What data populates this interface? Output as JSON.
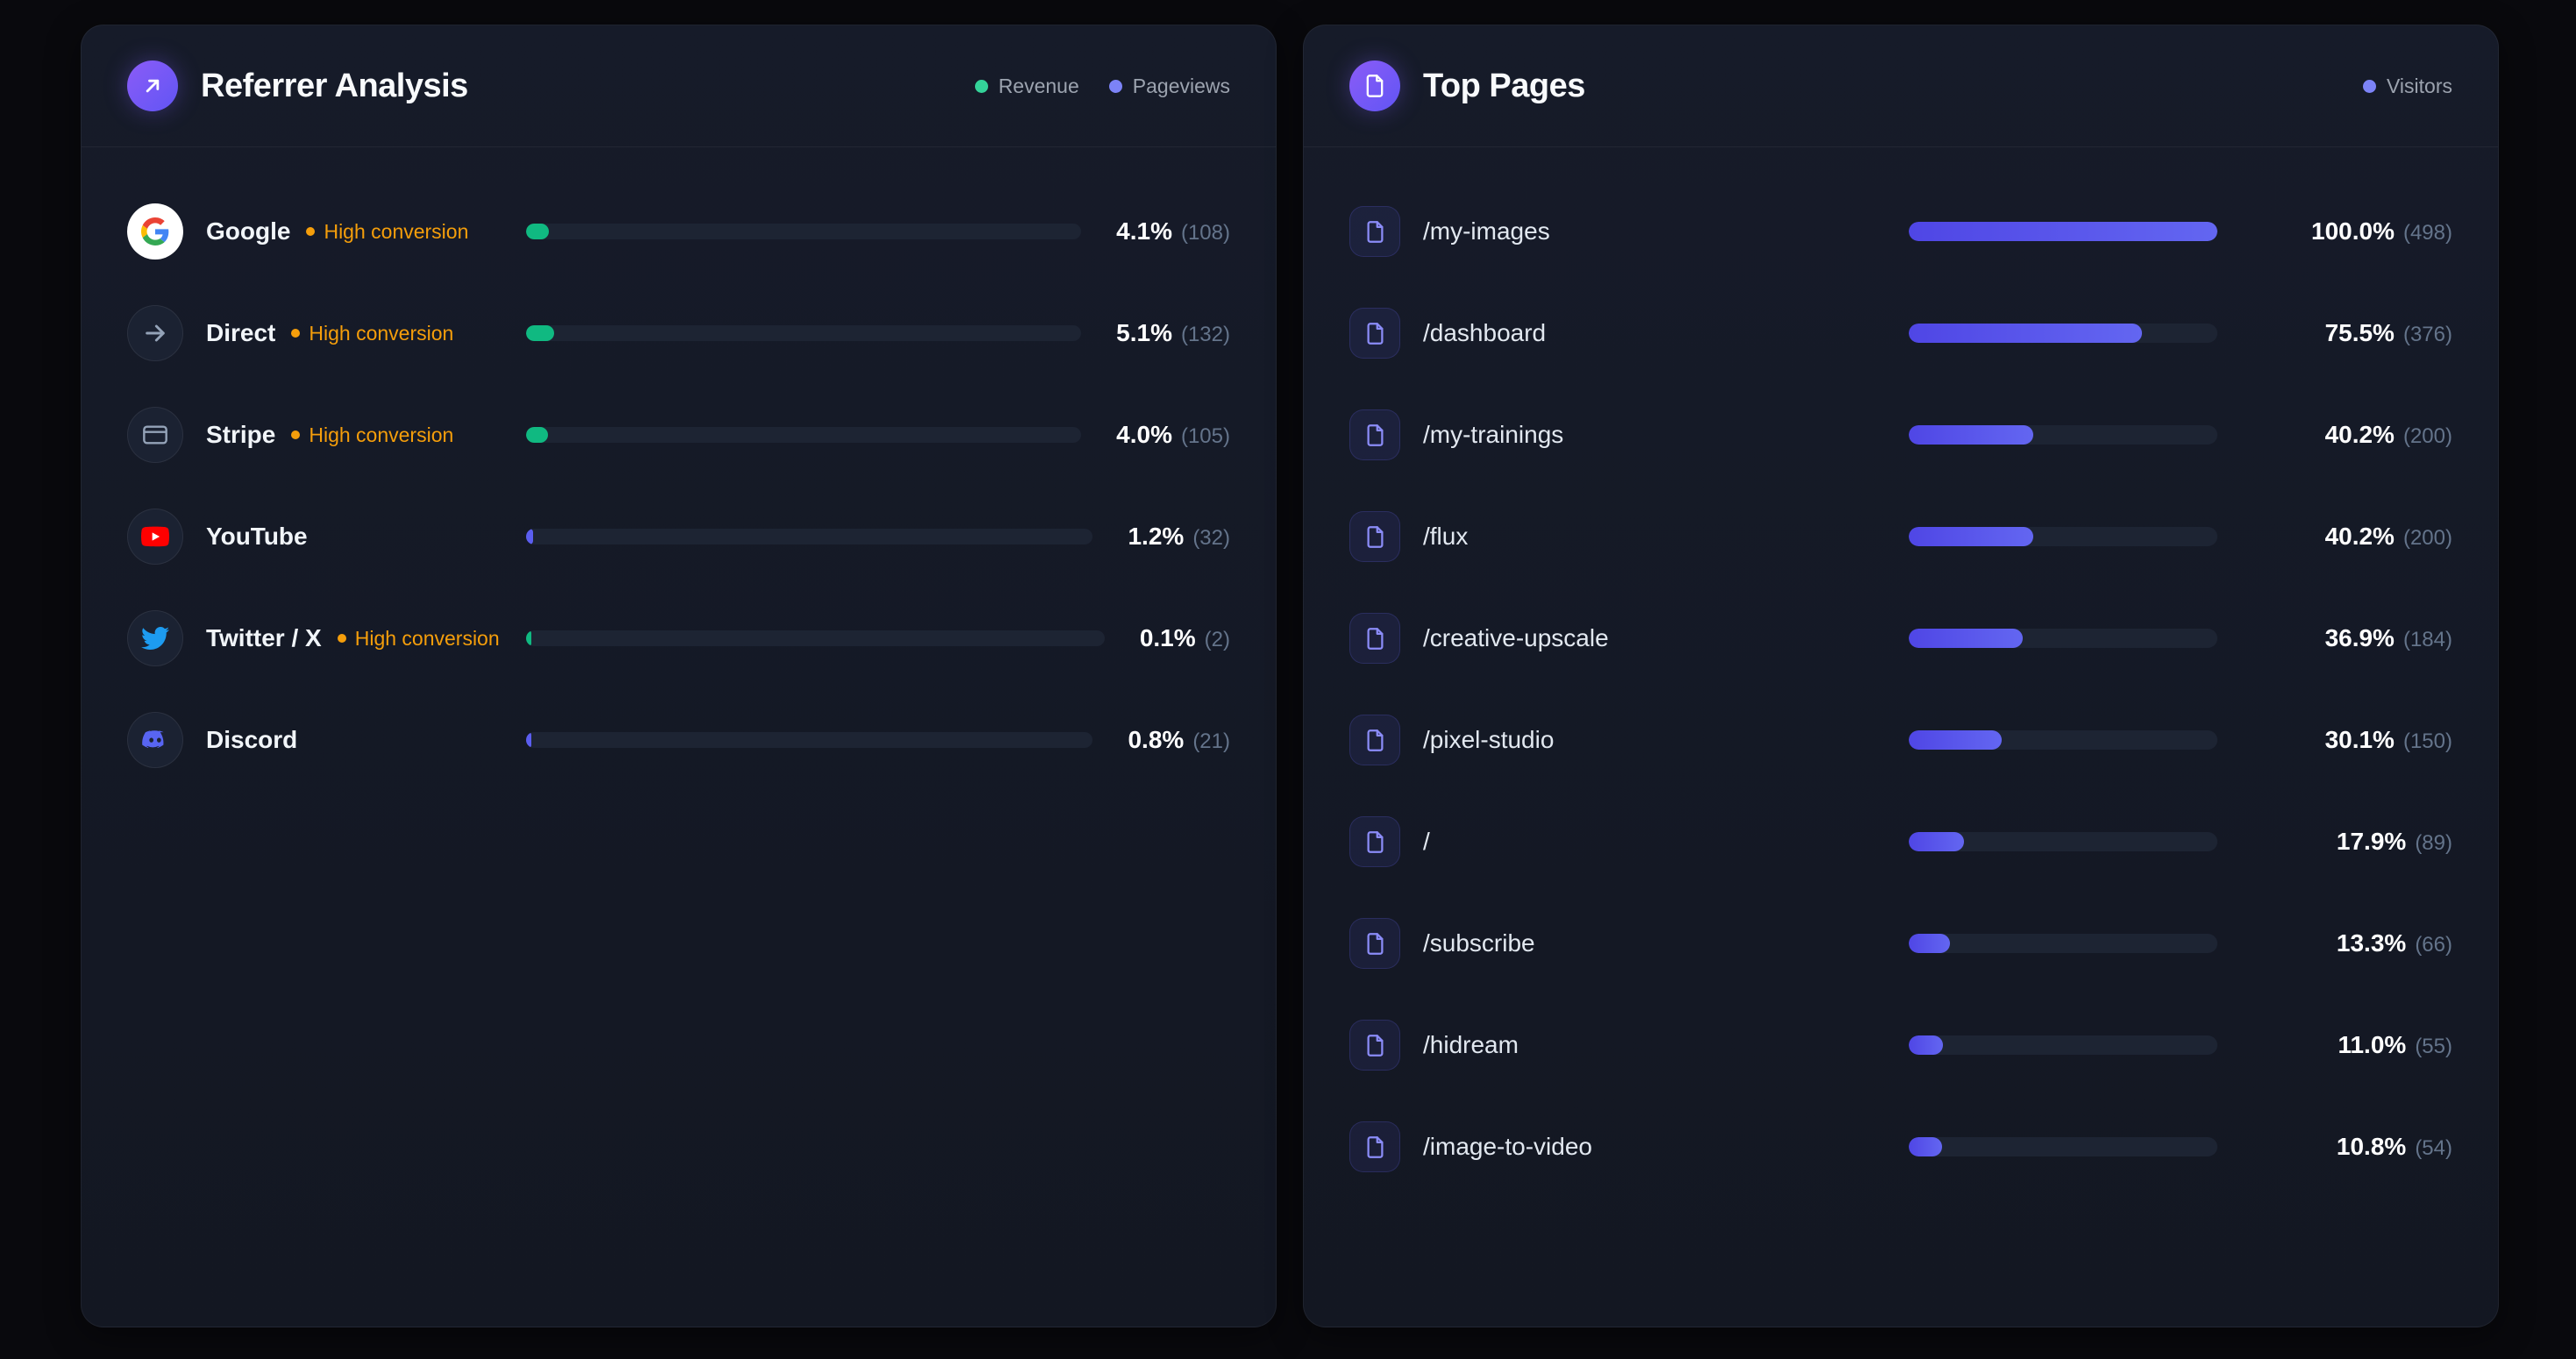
{
  "colors": {
    "revenue": "#10b981",
    "pageviews": "#5b5ef0",
    "visitors_bar_start": "#4f46e5",
    "visitors_bar_end": "#6366f1",
    "badge": "#f59e0b",
    "legend_revenue": "#34d399",
    "legend_pageviews": "#7c83f7",
    "legend_visitors": "#7c83f7"
  },
  "referrer_card": {
    "title": "Referrer Analysis",
    "icon": "arrow-up-right-icon",
    "badge_label": "High conversion",
    "legend": [
      {
        "key": "revenue",
        "label": "Revenue",
        "color": "#34d399"
      },
      {
        "key": "pageviews",
        "label": "Pageviews",
        "color": "#7c83f7"
      }
    ],
    "rows": [
      {
        "name": "Google",
        "icon": "google-icon",
        "high_conversion": true,
        "bar": "revenue",
        "percent": 4.1,
        "count": 108
      },
      {
        "name": "Direct",
        "icon": "arrow-right-icon",
        "high_conversion": true,
        "bar": "revenue",
        "percent": 5.1,
        "count": 132
      },
      {
        "name": "Stripe",
        "icon": "credit-card-icon",
        "high_conversion": true,
        "bar": "revenue",
        "percent": 4.0,
        "count": 105
      },
      {
        "name": "YouTube",
        "icon": "youtube-icon",
        "high_conversion": false,
        "bar": "pageviews",
        "percent": 1.2,
        "count": 32
      },
      {
        "name": "Twitter / X",
        "icon": "twitter-icon",
        "high_conversion": true,
        "bar": "revenue",
        "percent": 0.1,
        "count": 2
      },
      {
        "name": "Discord",
        "icon": "discord-icon",
        "high_conversion": false,
        "bar": "pageviews",
        "percent": 0.8,
        "count": 21
      }
    ]
  },
  "top_pages_card": {
    "title": "Top Pages",
    "icon": "document-icon",
    "legend": [
      {
        "key": "visitors",
        "label": "Visitors",
        "color": "#7c83f7"
      }
    ],
    "rows": [
      {
        "path": "/my-images",
        "icon": "file-icon",
        "percent": 100.0,
        "count": 498
      },
      {
        "path": "/dashboard",
        "icon": "file-icon",
        "percent": 75.5,
        "count": 376
      },
      {
        "path": "/my-trainings",
        "icon": "file-icon",
        "percent": 40.2,
        "count": 200
      },
      {
        "path": "/flux",
        "icon": "file-icon",
        "percent": 40.2,
        "count": 200
      },
      {
        "path": "/creative-upscale",
        "icon": "file-icon",
        "percent": 36.9,
        "count": 184
      },
      {
        "path": "/pixel-studio",
        "icon": "file-icon",
        "percent": 30.1,
        "count": 150
      },
      {
        "path": "/",
        "icon": "file-icon",
        "percent": 17.9,
        "count": 89
      },
      {
        "path": "/subscribe",
        "icon": "file-icon",
        "percent": 13.3,
        "count": 66
      },
      {
        "path": "/hidream",
        "icon": "file-icon",
        "percent": 11.0,
        "count": 55
      },
      {
        "path": "/image-to-video",
        "icon": "file-icon",
        "percent": 10.8,
        "count": 54
      }
    ]
  },
  "chart_data": [
    {
      "type": "bar",
      "title": "Referrer Analysis",
      "categories": [
        "Google",
        "Direct",
        "Stripe",
        "YouTube",
        "Twitter / X",
        "Discord"
      ],
      "values": [
        4.1,
        5.1,
        4.0,
        1.2,
        0.1,
        0.8
      ],
      "counts": [
        108,
        132,
        105,
        32,
        2,
        21
      ],
      "legend": [
        "Revenue",
        "Pageviews"
      ],
      "unit": "%",
      "xlim": [
        0,
        100
      ]
    },
    {
      "type": "bar",
      "title": "Top Pages",
      "categories": [
        "/my-images",
        "/dashboard",
        "/my-trainings",
        "/flux",
        "/creative-upscale",
        "/pixel-studio",
        "/",
        "/subscribe",
        "/hidream",
        "/image-to-video"
      ],
      "values": [
        100.0,
        75.5,
        40.2,
        40.2,
        36.9,
        30.1,
        17.9,
        13.3,
        11.0,
        10.8
      ],
      "counts": [
        498,
        376,
        200,
        200,
        184,
        150,
        89,
        66,
        55,
        54
      ],
      "legend": [
        "Visitors"
      ],
      "unit": "%",
      "xlim": [
        0,
        100
      ]
    }
  ]
}
